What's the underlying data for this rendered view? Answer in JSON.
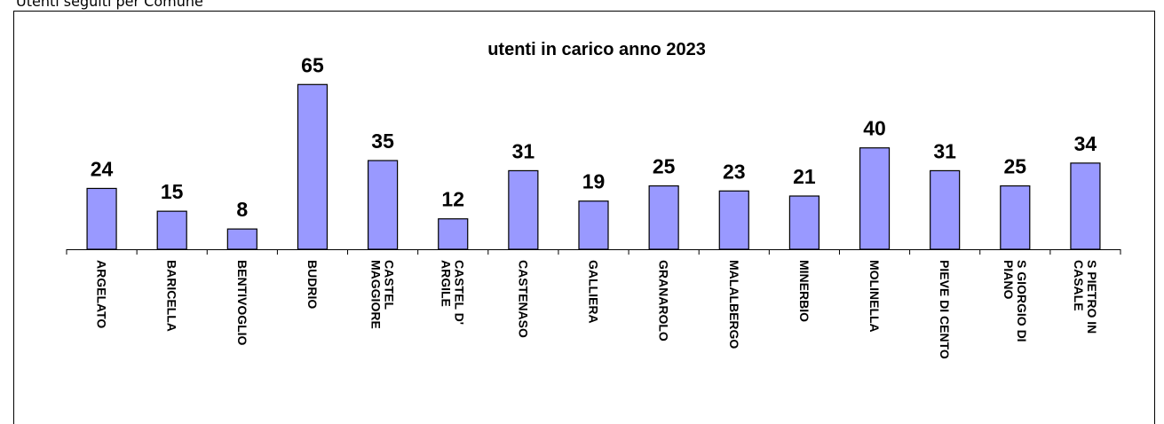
{
  "heading": "Utenti seguiti per Comune",
  "chart_data": {
    "type": "bar",
    "title": "utenti in carico anno 2023",
    "categories": [
      "ARGELATO",
      "BARICELLA",
      "BENTIVOGLIO",
      "BUDRIO",
      "CASTEL MAGGIORE",
      "CASTEL D' ARGILE",
      "CASTENASO",
      "GALLIERA",
      "GRANAROLO",
      "MALALBERGO",
      "MINERBIO",
      "MOLINELLA",
      "PIEVE DI CENTO",
      "S GIORGIO DI PIANO",
      "S PIETRO IN CASALE"
    ],
    "values": [
      24,
      15,
      8,
      65,
      35,
      12,
      31,
      19,
      25,
      23,
      21,
      40,
      31,
      25,
      34
    ],
    "color": "#9999ff",
    "ylim": [
      0,
      70
    ]
  }
}
